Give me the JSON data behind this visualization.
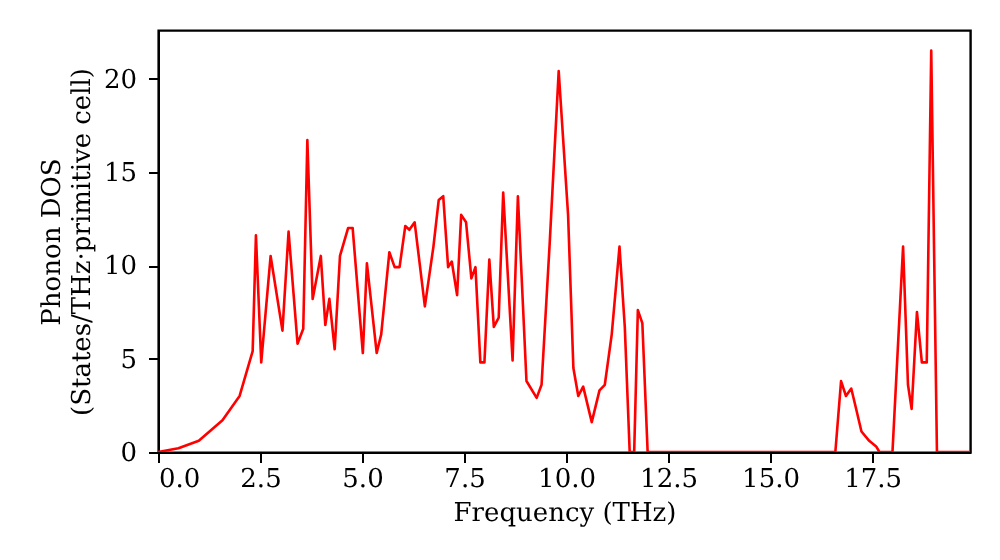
{
  "chart_data": {
    "type": "line",
    "xlabel": "Frequency (THz)",
    "ylabel": "Phonon DOS\n(States/THz·primitive cell)",
    "xlim": [
      0,
      19.9
    ],
    "ylim": [
      0,
      22.6
    ],
    "xticks": [
      {
        "value": 0,
        "label": "0.0"
      },
      {
        "value": 2.5,
        "label": "2.5"
      },
      {
        "value": 5,
        "label": "5.0"
      },
      {
        "value": 7.5,
        "label": "7.5"
      },
      {
        "value": 10,
        "label": "10.0"
      },
      {
        "value": 12.5,
        "label": "12.5"
      },
      {
        "value": 15,
        "label": "15.0"
      },
      {
        "value": 17.5,
        "label": "17.5"
      }
    ],
    "yticks": [
      0,
      5,
      10,
      15,
      20
    ],
    "grid": false,
    "marker": "none",
    "line_style": "solid",
    "x": [
      0,
      0.5,
      1.0,
      1.58,
      2.0,
      2.32,
      2.4,
      2.53,
      2.76,
      3.05,
      3.2,
      3.42,
      3.56,
      3.66,
      3.79,
      3.99,
      4.1,
      4.2,
      4.33,
      4.46,
      4.66,
      4.77,
      5.02,
      5.12,
      5.36,
      5.47,
      5.67,
      5.8,
      5.92,
      6.06,
      6.16,
      6.29,
      6.54,
      6.75,
      6.88,
      6.99,
      7.11,
      7.2,
      7.33,
      7.43,
      7.55,
      7.68,
      7.78,
      7.9,
      8.0,
      8.12,
      8.23,
      8.35,
      8.46,
      8.69,
      8.82,
      9.03,
      9.28,
      9.4,
      9.6,
      9.82,
      10.05,
      10.18,
      10.3,
      10.42,
      10.63,
      10.82,
      10.95,
      11.12,
      11.31,
      11.44,
      11.56,
      11.67,
      11.76,
      11.87,
      12.0,
      16.6,
      16.74,
      16.86,
      16.99,
      17.1,
      17.24,
      17.43,
      17.6,
      17.68,
      18.0,
      18.26,
      18.38,
      18.47,
      18.6,
      18.72,
      18.84,
      18.95,
      19.09,
      19.9
    ],
    "series": [
      {
        "color": "#ff0000",
        "values": [
          0,
          0.2,
          0.6,
          1.7,
          3.0,
          5.4,
          11.6,
          4.8,
          10.5,
          6.5,
          11.8,
          5.8,
          6.6,
          16.7,
          8.2,
          10.5,
          6.8,
          8.2,
          5.5,
          10.5,
          12.0,
          12.0,
          5.3,
          10.1,
          5.3,
          6.3,
          10.7,
          9.9,
          9.9,
          12.1,
          11.9,
          12.3,
          7.8,
          11.0,
          13.5,
          13.7,
          9.9,
          10.2,
          8.4,
          12.7,
          12.3,
          9.3,
          9.9,
          4.8,
          4.8,
          10.3,
          6.7,
          7.2,
          13.9,
          4.9,
          13.7,
          3.8,
          2.9,
          3.6,
          11.2,
          20.4,
          12.7,
          4.5,
          3.0,
          3.5,
          1.6,
          3.3,
          3.6,
          6.3,
          11.0,
          6.7,
          0,
          0,
          7.6,
          6.9,
          0,
          0,
          3.8,
          3.0,
          3.4,
          2.4,
          1.1,
          0.6,
          0.3,
          0,
          0,
          11.0,
          3.6,
          2.3,
          7.5,
          4.8,
          4.8,
          21.5,
          0,
          0
        ]
      }
    ]
  }
}
